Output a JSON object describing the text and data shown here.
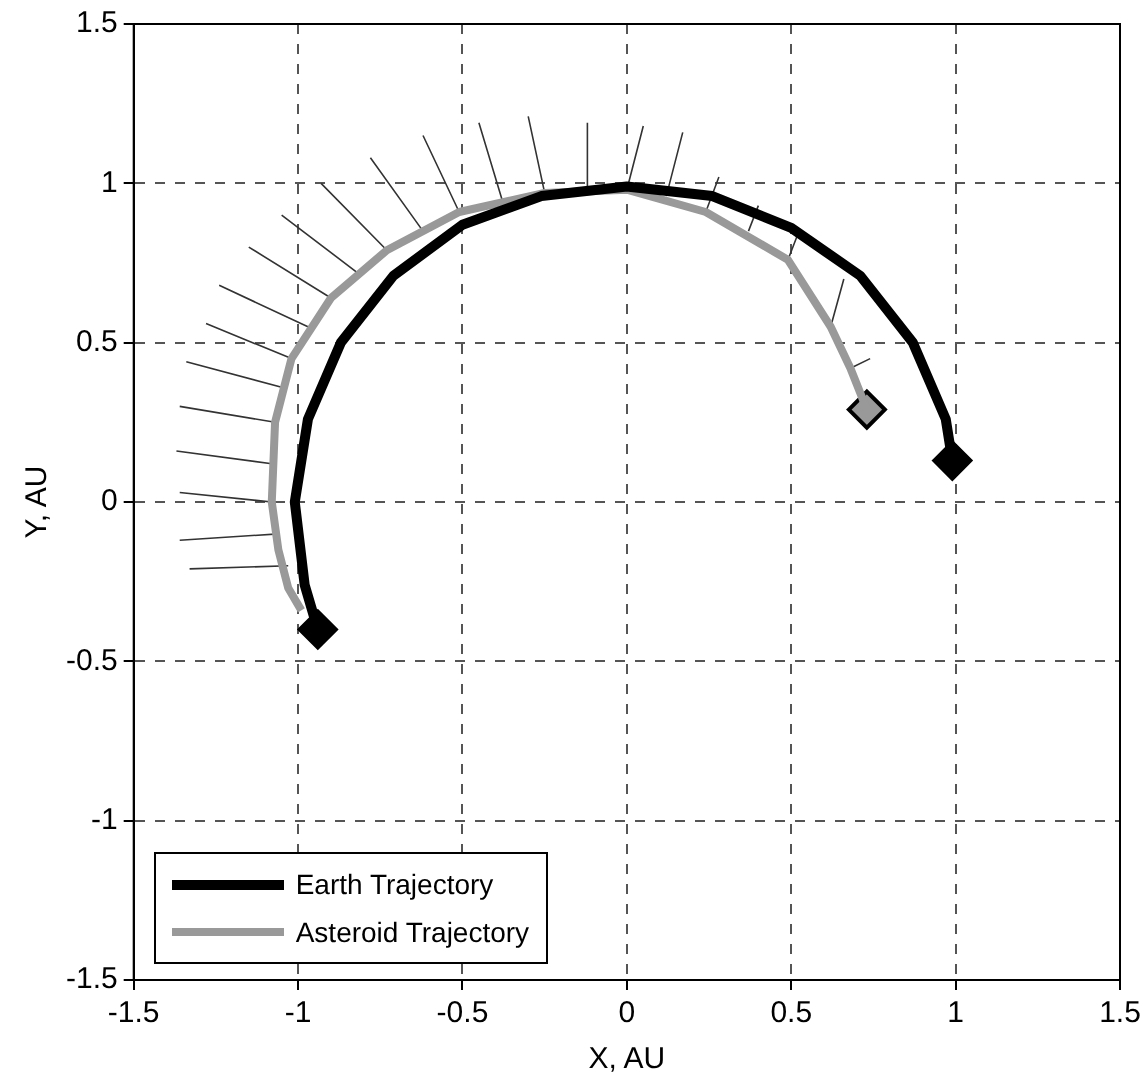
{
  "chart_data": {
    "type": "line",
    "xlabel": "X, AU",
    "ylabel": "Y, AU",
    "xlim": [
      -1.5,
      1.5
    ],
    "ylim": [
      -1.5,
      1.5
    ],
    "xticks": [
      -1.5,
      -1,
      -0.5,
      0,
      0.5,
      1,
      1.5
    ],
    "yticks": [
      -1.5,
      -1,
      -0.5,
      0,
      0.5,
      1,
      1.5
    ],
    "grid": true,
    "legend": "bottom left",
    "series": [
      {
        "name": "Earth Trajectory",
        "type": "line",
        "color": "#000000",
        "x": [
          0.99,
          0.97,
          0.87,
          0.71,
          0.5,
          0.26,
          0,
          -0.26,
          -0.5,
          -0.71,
          -0.87,
          -0.97,
          -1.01,
          -0.98,
          -0.94
        ],
        "values": [
          0.13,
          0.26,
          0.5,
          0.71,
          0.86,
          0.96,
          0.99,
          0.96,
          0.87,
          0.71,
          0.5,
          0.26,
          0,
          -0.26,
          -0.4
        ]
      },
      {
        "name": "Asteroid Trajectory",
        "type": "line",
        "color": "#999999",
        "x": [
          0.73,
          0.68,
          0.62,
          0.49,
          0.24,
          0,
          -0.25,
          -0.51,
          -0.73,
          -0.9,
          -1.02,
          -1.07,
          -1.08,
          -1.06,
          -1.03,
          -0.99
        ],
        "values": [
          0.29,
          0.42,
          0.55,
          0.76,
          0.91,
          0.98,
          0.97,
          0.91,
          0.79,
          0.64,
          0.45,
          0.25,
          0,
          -0.15,
          -0.27,
          -0.34
        ]
      },
      {
        "type": "line",
        "color": "#333333",
        "x": [
          -1.03,
          -1.33,
          null,
          -1.06,
          -1.36,
          null,
          -1.08,
          -1.36,
          null,
          -1.08,
          -1.37,
          null,
          -1.07,
          -1.36,
          null,
          -1.05,
          -1.34,
          null,
          -1.02,
          -1.28,
          null,
          -0.97,
          -1.24,
          null,
          -0.9,
          -1.15,
          null,
          -0.82,
          -1.05,
          null,
          -0.73,
          -0.93,
          null,
          -0.62,
          -0.78,
          null,
          -0.51,
          -0.62,
          null,
          -0.38,
          -0.45,
          null,
          -0.25,
          -0.3,
          null,
          -0.12,
          -0.12,
          null,
          0,
          0.05,
          null,
          0.12,
          0.17,
          null,
          0.24,
          0.28,
          null,
          0.37,
          0.4,
          null,
          0.49,
          0.52,
          null,
          0.62,
          0.66,
          null,
          0.68,
          0.74
        ],
        "values": [
          -0.2,
          -0.21,
          null,
          -0.1,
          -0.12,
          null,
          0,
          0.03,
          null,
          0.12,
          0.16,
          null,
          0.25,
          0.3,
          null,
          0.36,
          0.44,
          null,
          0.45,
          0.56,
          null,
          0.55,
          0.68,
          null,
          0.64,
          0.8,
          null,
          0.72,
          0.9,
          null,
          0.79,
          1,
          null,
          0.85,
          1.08,
          null,
          0.91,
          1.15,
          null,
          0.95,
          1.19,
          null,
          0.97,
          1.21,
          null,
          0.98,
          1.19,
          null,
          0.98,
          1.18,
          null,
          0.96,
          1.16,
          null,
          0.91,
          1.02,
          null,
          0.85,
          0.93,
          null,
          0.76,
          0.84,
          null,
          0.55,
          0.7,
          null,
          0.42,
          0.45
        ]
      },
      {
        "type": "scatter",
        "marker": "diamond",
        "color": "#000000",
        "x": [
          0.99,
          -0.94
        ],
        "values": [
          0.13,
          -0.4
        ]
      },
      {
        "type": "scatter",
        "marker": "diamond",
        "color": "#999999",
        "x": [
          0.73
        ],
        "values": [
          0.29
        ]
      }
    ]
  }
}
